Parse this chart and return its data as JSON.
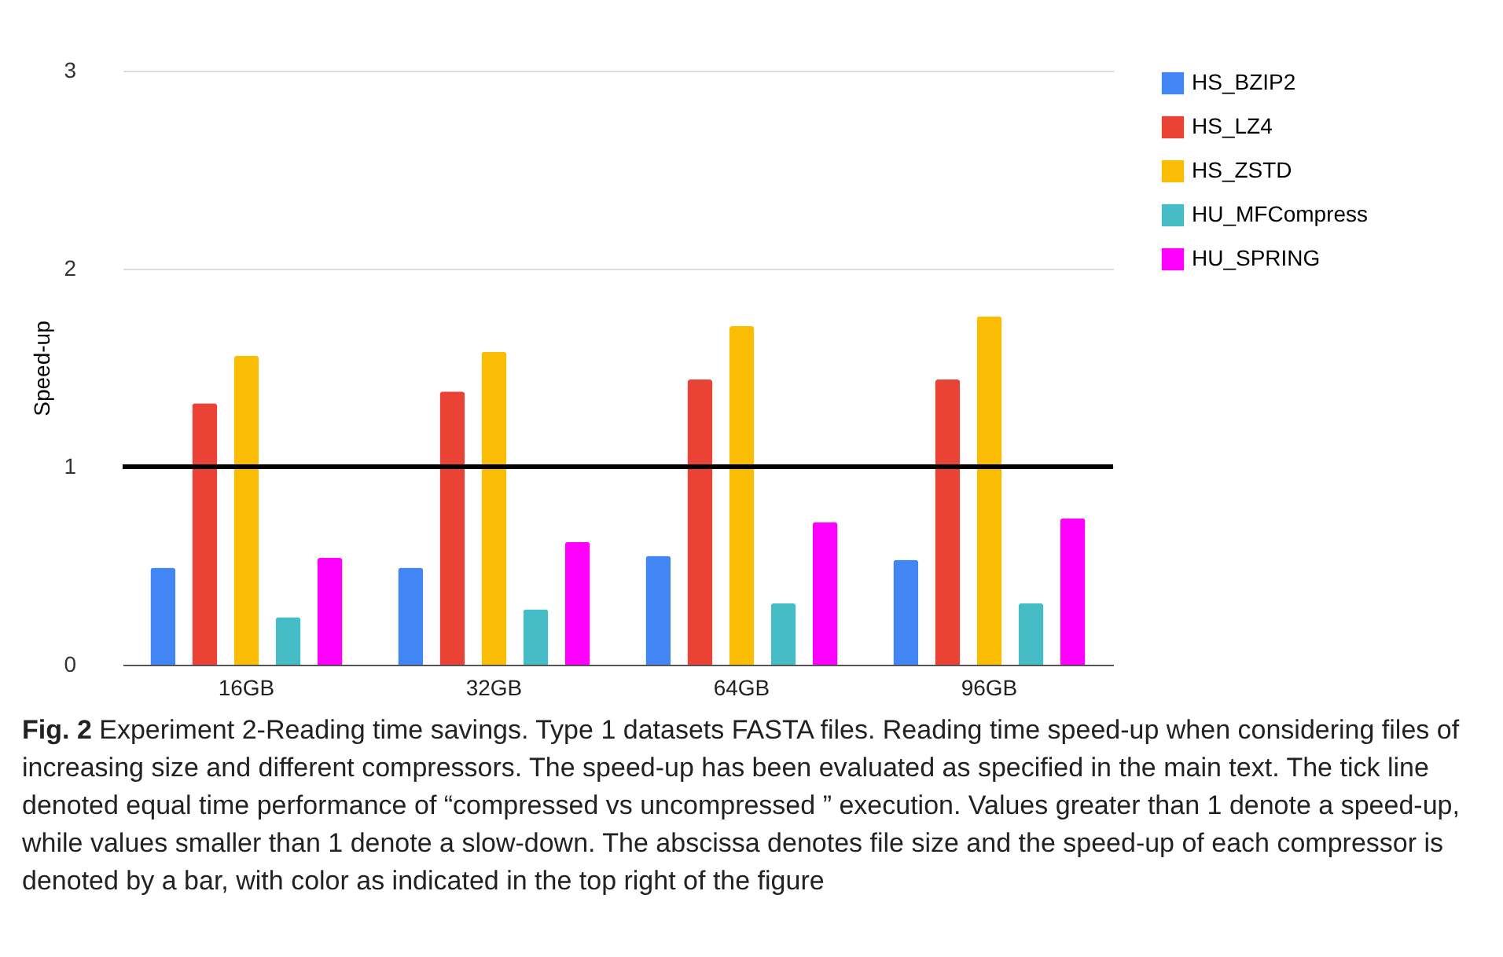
{
  "chart_data": {
    "type": "bar",
    "ylabel": "Speed-up",
    "categories": [
      "16GB",
      "32GB",
      "64GB",
      "96GB"
    ],
    "series": [
      {
        "name": "HS_BZIP2",
        "color": "#4285f4",
        "values": [
          0.49,
          0.49,
          0.55,
          0.53
        ]
      },
      {
        "name": "HS_LZ4",
        "color": "#ea4335",
        "values": [
          1.32,
          1.38,
          1.44,
          1.44
        ]
      },
      {
        "name": "HS_ZSTD",
        "color": "#fbbc04",
        "values": [
          1.56,
          1.58,
          1.71,
          1.76
        ]
      },
      {
        "name": "HU_MFCompress",
        "color": "#46bdc6",
        "values": [
          0.24,
          0.28,
          0.31,
          0.31
        ]
      },
      {
        "name": "HU_SPRING",
        "color": "#ff00ff",
        "values": [
          0.54,
          0.62,
          0.72,
          0.74
        ]
      }
    ],
    "ylim": [
      0,
      3
    ],
    "yticks": [
      0,
      1,
      2,
      3
    ],
    "grid": "y",
    "legend": "right",
    "ref_lines": [
      {
        "axis": "y",
        "value": 1,
        "color": "#000000"
      }
    ],
    "annotations": [
      "Fig. 2",
      "Experiment 2-Reading time savings. Type 1 datasets FASTA files. Reading time speed-up when considering files of increasing size and different compressors. The speed-up has been evaluated as specified in the main text. The tick line denoted equal time performance of “compressed vs uncompressed ” execution. Values greater than 1 denote a speed-up, while values smaller than 1 denote a slow-down. The abscissa denotes file size and the speed-up of each compressor is denoted by a bar, with color as indicated in the top right of the figure"
    ]
  }
}
